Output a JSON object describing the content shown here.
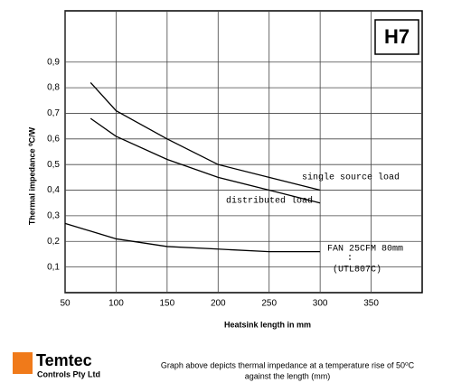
{
  "chart_data": {
    "type": "line",
    "badge": "H7",
    "x_label": "Heatsink length in mm",
    "y_label": "Thermal impedance ⁰C/W",
    "x": [
      50,
      75,
      100,
      150,
      200,
      250,
      300
    ],
    "series": [
      {
        "name": "single source load",
        "color": "#000000",
        "values": [
          null,
          0.82,
          0.71,
          0.6,
          0.5,
          0.45,
          0.4
        ]
      },
      {
        "name": "distributed load",
        "color": "#000000",
        "values": [
          null,
          0.68,
          0.61,
          0.52,
          0.45,
          0.4,
          0.35
        ]
      },
      {
        "name": "FAN 25CFM 80mm",
        "color": "#000000",
        "values": [
          0.27,
          0.24,
          0.21,
          0.18,
          0.17,
          0.16,
          0.16
        ]
      }
    ],
    "annotation": "(UTL807C)",
    "xlim": [
      50,
      400
    ],
    "xticks": [
      50,
      100,
      150,
      200,
      250,
      300,
      350
    ],
    "ylim": [
      0,
      1.1
    ],
    "yticks": [
      {
        "value": 0.1,
        "label": "0,1"
      },
      {
        "value": 0.2,
        "label": "0,2"
      },
      {
        "value": 0.3,
        "label": "0,3"
      },
      {
        "value": 0.4,
        "label": "0,4"
      },
      {
        "value": 0.5,
        "label": "0,5"
      },
      {
        "value": 0.6,
        "label": "0,6"
      },
      {
        "value": 0.7,
        "label": "0,7"
      },
      {
        "value": 0.8,
        "label": "0,8"
      },
      {
        "value": 0.9,
        "label": "0,9"
      }
    ],
    "grid": true
  },
  "footer": {
    "brand": "Temtec",
    "company": "Controls Pty Ltd",
    "caption_line1": "Graph above depicts thermal impedance at a temperature rise of 50⁰C",
    "caption_line2": "against the length (mm)"
  }
}
